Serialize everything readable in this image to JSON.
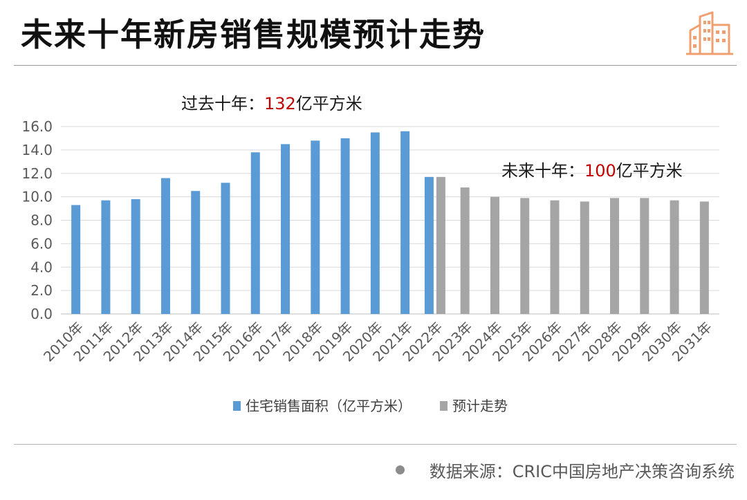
{
  "page": {
    "title": "未来十年新房销售规模预计走势",
    "source_label": "数据来源：CRIC中国房地产决策咨询系统",
    "logo_icon": "building-icon"
  },
  "chart_data": {
    "type": "bar",
    "categories": [
      "2010年",
      "2011年",
      "2012年",
      "2013年",
      "2014年",
      "2015年",
      "2016年",
      "2017年",
      "2018年",
      "2019年",
      "2020年",
      "2021年",
      "2022年",
      "2023年",
      "2024年",
      "2025年",
      "2026年",
      "2027年",
      "2028年",
      "2029年",
      "2030年",
      "2031年"
    ],
    "series": [
      {
        "name": "住宅销售面积（亿平方米）",
        "color": "#5b9bd5",
        "values": [
          9.3,
          9.7,
          9.8,
          11.6,
          10.5,
          11.2,
          13.8,
          14.5,
          14.8,
          15.0,
          15.5,
          15.6,
          11.7,
          null,
          null,
          null,
          null,
          null,
          null,
          null,
          null,
          null
        ]
      },
      {
        "name": "预计走势",
        "color": "#a5a5a5",
        "values": [
          null,
          null,
          null,
          null,
          null,
          null,
          null,
          null,
          null,
          null,
          null,
          null,
          11.7,
          10.8,
          10.0,
          9.9,
          9.7,
          9.6,
          9.9,
          9.9,
          9.7,
          9.6
        ]
      }
    ],
    "ylim": [
      0,
      16
    ],
    "yticks": [
      "0.0",
      "2.0",
      "4.0",
      "6.0",
      "8.0",
      "10.0",
      "12.0",
      "14.0",
      "16.0"
    ],
    "grid": true,
    "legend_position": "bottom",
    "annotations": [
      {
        "prefix": "过去十年：",
        "value": "132",
        "suffix": "亿平方米"
      },
      {
        "prefix": "未来十年：",
        "value": "100",
        "suffix": "亿平方米"
      }
    ],
    "colors": {
      "highlight": "#c00000",
      "grid": "#d9d9d9",
      "axis_text": "#595959"
    }
  }
}
